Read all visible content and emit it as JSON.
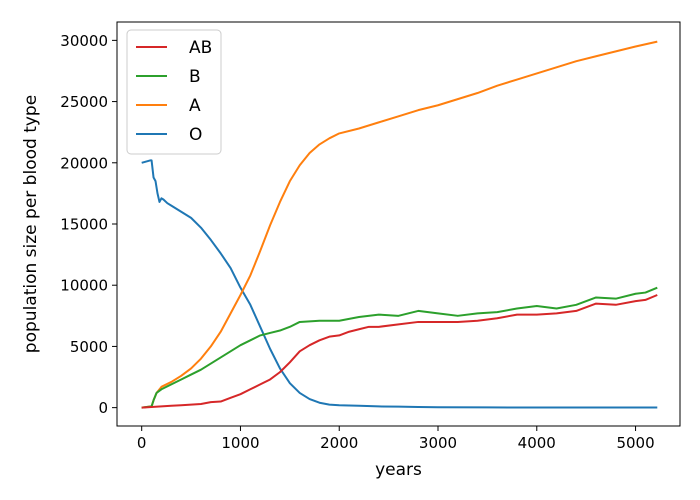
{
  "chart_data": {
    "type": "line",
    "title": "",
    "xlabel": "years",
    "ylabel": "population size per blood type",
    "xlim": [
      -250,
      5450
    ],
    "ylim": [
      -1500,
      31500
    ],
    "xticks": [
      0,
      1000,
      2000,
      3000,
      4000,
      5000
    ],
    "yticks": [
      0,
      5000,
      10000,
      15000,
      20000,
      25000,
      30000
    ],
    "grid": false,
    "legend_position": "upper-left",
    "series": [
      {
        "name": "AB",
        "color": "#d62728",
        "x": [
          0,
          100,
          200,
          300,
          400,
          500,
          600,
          700,
          800,
          900,
          1000,
          1100,
          1200,
          1300,
          1400,
          1500,
          1600,
          1700,
          1800,
          1900,
          2000,
          2100,
          2200,
          2300,
          2400,
          2600,
          2800,
          3000,
          3200,
          3400,
          3600,
          3800,
          4000,
          4200,
          4400,
          4600,
          4800,
          5000,
          5100,
          5220
        ],
        "y": [
          0,
          50,
          100,
          150,
          200,
          250,
          300,
          450,
          500,
          800,
          1100,
          1500,
          1900,
          2300,
          2900,
          3700,
          4600,
          5100,
          5500,
          5800,
          5900,
          6200,
          6400,
          6600,
          6600,
          6800,
          7000,
          7000,
          7000,
          7100,
          7300,
          7600,
          7600,
          7700,
          7900,
          8500,
          8400,
          8700,
          8800,
          9200
        ]
      },
      {
        "name": "B",
        "color": "#2ca02c",
        "x": [
          0,
          100,
          120,
          150,
          200,
          300,
          400,
          500,
          600,
          700,
          800,
          900,
          1000,
          1100,
          1200,
          1300,
          1400,
          1500,
          1600,
          1800,
          2000,
          2200,
          2400,
          2600,
          2800,
          3000,
          3200,
          3400,
          3600,
          3800,
          4000,
          4200,
          4400,
          4600,
          4800,
          5000,
          5100,
          5220
        ],
        "y": [
          0,
          100,
          600,
          1200,
          1500,
          1900,
          2300,
          2700,
          3100,
          3600,
          4100,
          4600,
          5100,
          5500,
          5900,
          6100,
          6300,
          6600,
          7000,
          7100,
          7100,
          7400,
          7600,
          7500,
          7900,
          7700,
          7500,
          7700,
          7800,
          8100,
          8300,
          8100,
          8400,
          9000,
          8900,
          9300,
          9400,
          9800
        ]
      },
      {
        "name": "A",
        "color": "#ff7f0e",
        "x": [
          0,
          100,
          120,
          150,
          200,
          300,
          400,
          500,
          600,
          700,
          800,
          900,
          1000,
          1100,
          1200,
          1300,
          1400,
          1500,
          1600,
          1700,
          1800,
          1900,
          2000,
          2200,
          2400,
          2600,
          2800,
          3000,
          3200,
          3400,
          3600,
          3800,
          4000,
          4200,
          4400,
          4600,
          4800,
          5000,
          5220
        ],
        "y": [
          0,
          100,
          600,
          1200,
          1700,
          2100,
          2600,
          3200,
          4000,
          5000,
          6200,
          7700,
          9200,
          10800,
          12800,
          14900,
          16800,
          18500,
          19800,
          20800,
          21500,
          22000,
          22400,
          22800,
          23300,
          23800,
          24300,
          24700,
          25200,
          25700,
          26300,
          26800,
          27300,
          27800,
          28300,
          28700,
          29100,
          29500,
          29900
        ]
      },
      {
        "name": "O",
        "color": "#1f77b4",
        "x": [
          0,
          90,
          100,
          120,
          140,
          160,
          180,
          200,
          220,
          260,
          300,
          400,
          500,
          600,
          700,
          800,
          900,
          1000,
          1100,
          1200,
          1300,
          1400,
          1500,
          1600,
          1700,
          1800,
          1900,
          2000,
          2200,
          2400,
          2600,
          2800,
          3000,
          3500,
          4000,
          4500,
          5000,
          5220
        ],
        "y": [
          20000,
          20200,
          20200,
          18800,
          18500,
          17500,
          16800,
          17100,
          17000,
          16700,
          16500,
          16000,
          15500,
          14700,
          13700,
          12600,
          11400,
          9800,
          8400,
          6600,
          4800,
          3200,
          2000,
          1200,
          700,
          400,
          250,
          200,
          150,
          100,
          80,
          50,
          30,
          20,
          10,
          10,
          10,
          10
        ]
      }
    ],
    "legend": [
      "AB",
      "B",
      "A",
      "O"
    ]
  }
}
